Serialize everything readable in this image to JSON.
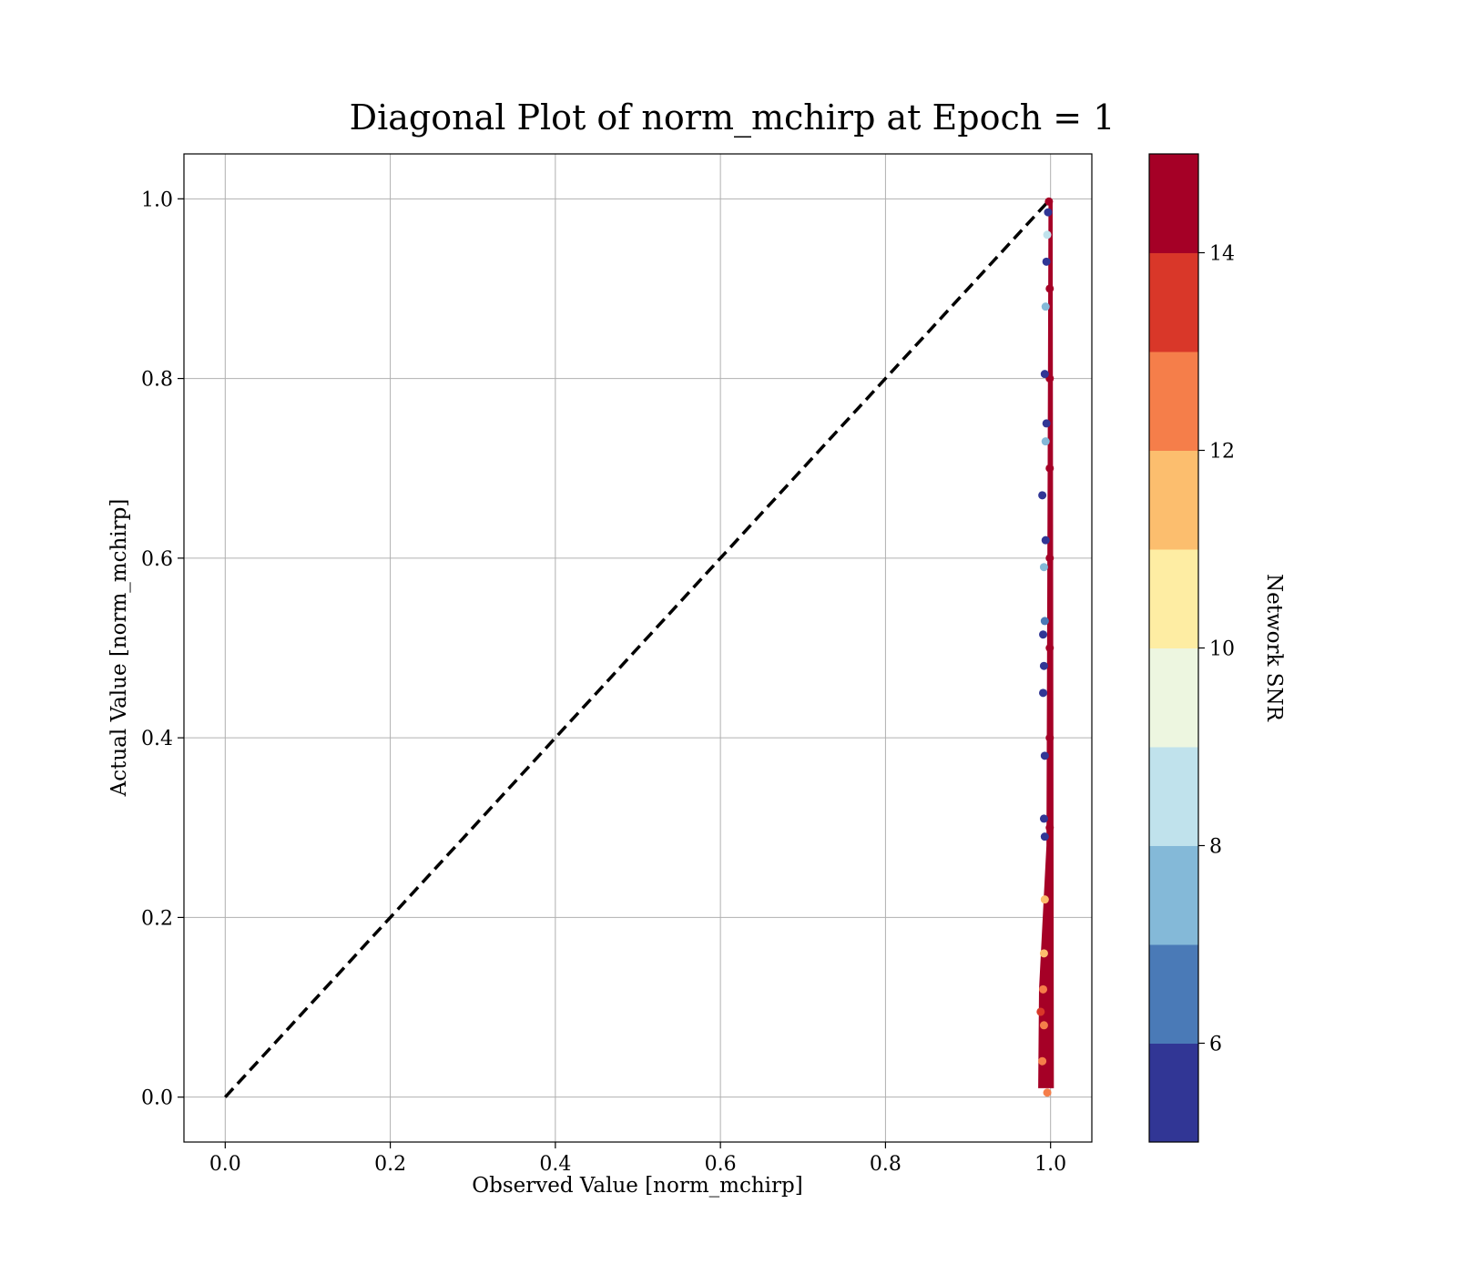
{
  "chart_data": {
    "type": "scatter",
    "title": "Diagonal Plot of norm_mchirp at Epoch = 1",
    "xlabel": "Observed Value [norm_mchirp]",
    "ylabel": "Actual Value [norm_mchirp]",
    "xlim": [
      -0.05,
      1.05
    ],
    "ylim": [
      -0.05,
      1.05
    ],
    "x_ticks": [
      "0.0",
      "0.2",
      "0.4",
      "0.6",
      "0.8",
      "1.0"
    ],
    "y_ticks": [
      "0.0",
      "0.2",
      "0.4",
      "0.6",
      "0.8",
      "1.0"
    ],
    "grid": true,
    "reference_line": {
      "from": [
        0,
        0
      ],
      "to": [
        1,
        1
      ],
      "style": "dashed",
      "color": "#000000"
    },
    "colorbar": {
      "label": "Network SNR",
      "range": [
        5,
        15
      ],
      "ticks": [
        "6",
        "8",
        "10",
        "12",
        "14"
      ],
      "colors": [
        "#313695",
        "#4a7ab7",
        "#84b9d8",
        "#c0e2ec",
        "#edf6e0",
        "#feeda3",
        "#fcbe6e",
        "#f57e4a",
        "#d93729",
        "#a50026"
      ]
    },
    "points": [
      {
        "x": 0.998,
        "y": 0.997,
        "snr": 14.5
      },
      {
        "x": 0.999,
        "y": 0.9,
        "snr": 14.5
      },
      {
        "x": 0.999,
        "y": 0.8,
        "snr": 14.5
      },
      {
        "x": 0.999,
        "y": 0.7,
        "snr": 14.5
      },
      {
        "x": 0.999,
        "y": 0.6,
        "snr": 14.5
      },
      {
        "x": 0.999,
        "y": 0.5,
        "snr": 14.5
      },
      {
        "x": 0.999,
        "y": 0.4,
        "snr": 14.5
      },
      {
        "x": 0.999,
        "y": 0.3,
        "snr": 14.5
      },
      {
        "x": 0.998,
        "y": 0.2,
        "snr": 14.5
      },
      {
        "x": 0.997,
        "y": 0.1,
        "snr": 14.5
      },
      {
        "x": 0.995,
        "y": 0.05,
        "snr": 14.5
      },
      {
        "x": 0.994,
        "y": 0.02,
        "snr": 14.0
      },
      {
        "x": 0.99,
        "y": 0.04,
        "snr": 12.5
      },
      {
        "x": 0.992,
        "y": 0.08,
        "snr": 12.0
      },
      {
        "x": 0.991,
        "y": 0.12,
        "snr": 12.5
      },
      {
        "x": 0.992,
        "y": 0.16,
        "snr": 11.5
      },
      {
        "x": 0.993,
        "y": 0.22,
        "snr": 11.5
      },
      {
        "x": 0.988,
        "y": 0.095,
        "snr": 13.5
      },
      {
        "x": 0.996,
        "y": 0.005,
        "snr": 12.0
      },
      {
        "x": 0.993,
        "y": 0.29,
        "snr": 5.5
      },
      {
        "x": 0.992,
        "y": 0.31,
        "snr": 5.5
      },
      {
        "x": 0.993,
        "y": 0.38,
        "snr": 5.5
      },
      {
        "x": 0.991,
        "y": 0.45,
        "snr": 5.5
      },
      {
        "x": 0.992,
        "y": 0.48,
        "snr": 5.5
      },
      {
        "x": 0.991,
        "y": 0.515,
        "snr": 5.5
      },
      {
        "x": 0.993,
        "y": 0.53,
        "snr": 6.0
      },
      {
        "x": 0.992,
        "y": 0.59,
        "snr": 7.5
      },
      {
        "x": 0.994,
        "y": 0.62,
        "snr": 5.5
      },
      {
        "x": 0.99,
        "y": 0.67,
        "snr": 5.5
      },
      {
        "x": 0.994,
        "y": 0.73,
        "snr": 7.5
      },
      {
        "x": 0.995,
        "y": 0.75,
        "snr": 5.5
      },
      {
        "x": 0.993,
        "y": 0.805,
        "snr": 5.5
      },
      {
        "x": 0.994,
        "y": 0.88,
        "snr": 7.5
      },
      {
        "x": 0.995,
        "y": 0.93,
        "snr": 5.5
      },
      {
        "x": 0.996,
        "y": 0.96,
        "snr": 8.5
      },
      {
        "x": 0.997,
        "y": 0.985,
        "snr": 5.5
      }
    ]
  }
}
